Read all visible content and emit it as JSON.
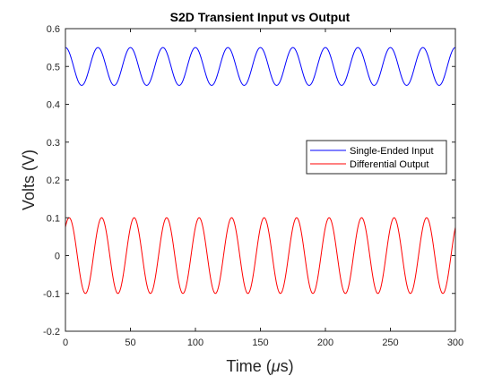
{
  "chart_data": {
    "type": "line",
    "title": "S2D Transient Input vs Output",
    "xlabel": "Time (μs)",
    "ylabel": "Volts (V)",
    "xlim": [
      0,
      300
    ],
    "ylim": [
      -0.2,
      0.6
    ],
    "xticks": [
      "0",
      "50",
      "100",
      "150",
      "200",
      "250",
      "300"
    ],
    "yticks": [
      "-0.2",
      "-0.1",
      "0",
      "0.1",
      "0.2",
      "0.3",
      "0.4",
      "0.5",
      "0.6"
    ],
    "grid": false,
    "legend_position": "right",
    "period_us": 25,
    "series": [
      {
        "name": "Single-Ended Input",
        "color": "#0000ff",
        "offset": 0.5,
        "amplitude": 0.05,
        "value_at_0": 0.55
      },
      {
        "name": "Differential Output",
        "color": "#ff0000",
        "offset": 0.0,
        "amplitude": 0.1,
        "value_at_0": 0.075
      }
    ]
  }
}
